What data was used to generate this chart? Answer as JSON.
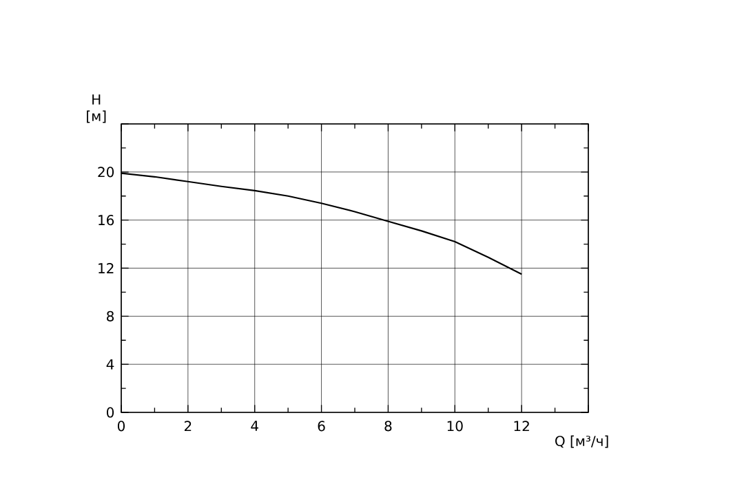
{
  "chart_data": {
    "type": "line",
    "xlabel": "Q [м³/ч]",
    "ylabel": "H [м]",
    "x": [
      0,
      1,
      2,
      3,
      4,
      5,
      6,
      7,
      8,
      9,
      10,
      11,
      12
    ],
    "values": [
      19.9,
      19.6,
      19.2,
      18.8,
      18.45,
      18.0,
      17.4,
      16.7,
      15.9,
      15.1,
      14.2,
      12.9,
      11.5
    ],
    "color": "#000000",
    "line_style": "solid",
    "marker": "none",
    "xlim": [
      0,
      14
    ],
    "xticks": [
      0,
      2,
      4,
      6,
      8,
      10,
      12,
      {
        "value": 14,
        "label": null
      }
    ],
    "ylim": [
      0,
      24
    ],
    "yticks": [
      0,
      4,
      8,
      12,
      16,
      20,
      {
        "value": 24,
        "label": null
      }
    ],
    "grid": true
  }
}
